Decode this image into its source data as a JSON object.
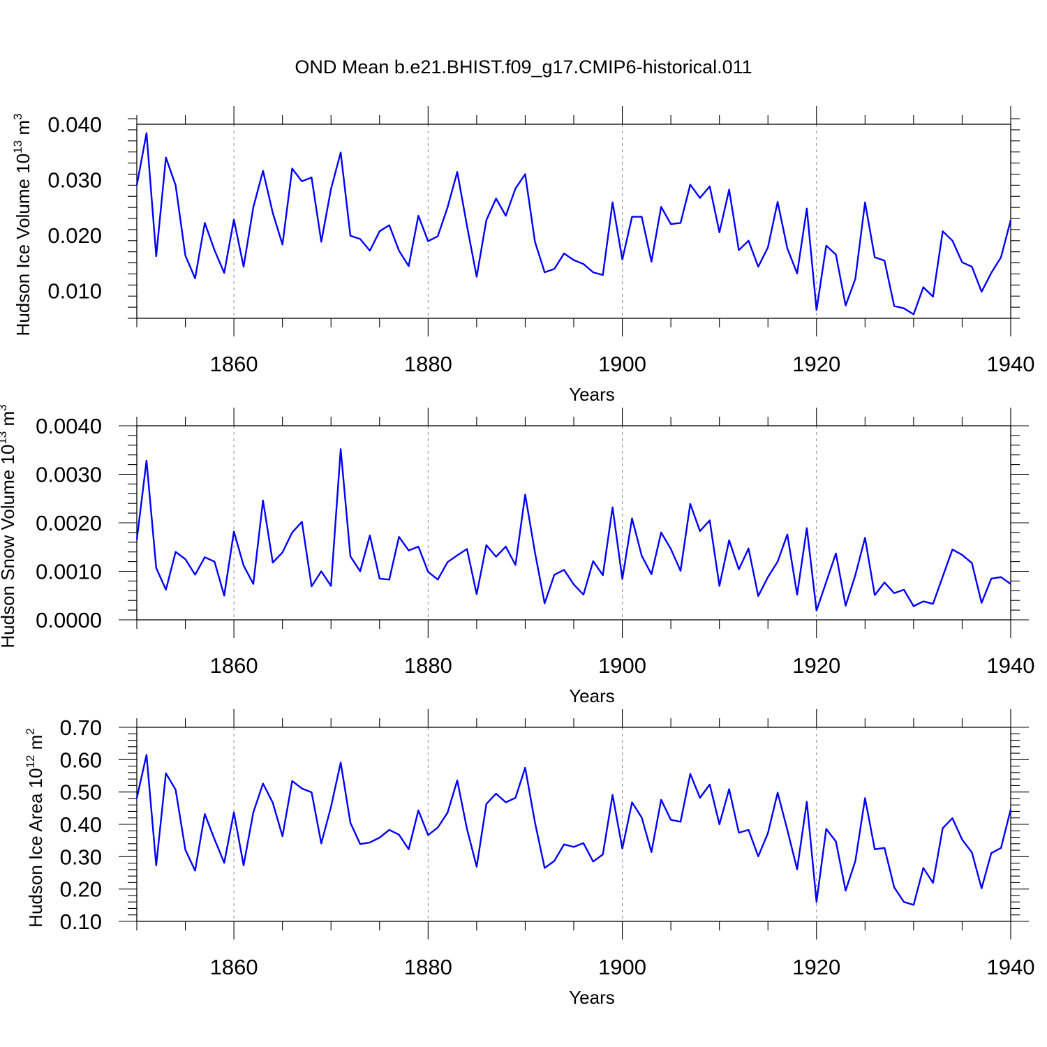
{
  "title": "OND Mean b.e21.BHIST.f09_g17.CMIP6-historical.011",
  "line_color": "#0000ff",
  "chart_data": [
    {
      "type": "line",
      "ylabel": {
        "text": "Hudson Ice Volume 10",
        "sup1": "13",
        "unit": " m",
        "sup2": "3"
      },
      "xlabel": "Years",
      "x": [
        1850,
        1851,
        1852,
        1853,
        1854,
        1855,
        1856,
        1857,
        1858,
        1859,
        1860,
        1861,
        1862,
        1863,
        1864,
        1865,
        1866,
        1867,
        1868,
        1869,
        1870,
        1871,
        1872,
        1873,
        1874,
        1875,
        1876,
        1877,
        1878,
        1879,
        1880,
        1881,
        1882,
        1883,
        1884,
        1885,
        1886,
        1887,
        1888,
        1889,
        1890,
        1891,
        1892,
        1893,
        1894,
        1895,
        1896,
        1897,
        1898,
        1899,
        1900,
        1901,
        1902,
        1903,
        1904,
        1905,
        1906,
        1907,
        1908,
        1909,
        1910,
        1911,
        1912,
        1913,
        1914,
        1915,
        1916,
        1917,
        1918,
        1919,
        1920,
        1921,
        1922,
        1923,
        1924,
        1925,
        1926,
        1927,
        1928,
        1929,
        1930,
        1931,
        1932,
        1933,
        1934,
        1935,
        1936,
        1937,
        1938,
        1939,
        1940
      ],
      "values": [
        0.029,
        0.0384,
        0.0162,
        0.034,
        0.029,
        0.0163,
        0.0122,
        0.0222,
        0.0173,
        0.0132,
        0.0228,
        0.0143,
        0.025,
        0.0316,
        0.024,
        0.0183,
        0.032,
        0.0297,
        0.0304,
        0.0188,
        0.0283,
        0.0349,
        0.0199,
        0.0193,
        0.0172,
        0.0207,
        0.0218,
        0.0172,
        0.0144,
        0.0235,
        0.0189,
        0.0198,
        0.025,
        0.0314,
        0.0217,
        0.0125,
        0.0227,
        0.0266,
        0.0235,
        0.0284,
        0.031,
        0.0188,
        0.0133,
        0.0139,
        0.0167,
        0.0155,
        0.0148,
        0.0133,
        0.0128,
        0.0259,
        0.0156,
        0.0233,
        0.0233,
        0.0152,
        0.0251,
        0.022,
        0.0222,
        0.0291,
        0.0267,
        0.0288,
        0.0205,
        0.0282,
        0.0173,
        0.019,
        0.0143,
        0.0178,
        0.026,
        0.0176,
        0.0131,
        0.0248,
        0.0065,
        0.0181,
        0.0165,
        0.0073,
        0.0121,
        0.0259,
        0.016,
        0.0154,
        0.0072,
        0.0068,
        0.0057,
        0.0106,
        0.0089,
        0.0207,
        0.019,
        0.0151,
        0.0143,
        0.0098,
        0.0132,
        0.016,
        0.0227
      ],
      "xlim": [
        1850,
        1940
      ],
      "ylim": [
        0.005,
        0.04
      ],
      "yticks": [
        0.01,
        0.02,
        0.03,
        0.04
      ],
      "ytick_labels": [
        "0.010",
        "0.020",
        "0.030",
        "0.040"
      ],
      "xticks": [
        1860,
        1880,
        1900,
        1920,
        1940
      ],
      "xtick_labels": [
        "1860",
        "1880",
        "1900",
        "1920",
        "1940"
      ]
    },
    {
      "type": "line",
      "ylabel": {
        "text": "Hudson Snow Volume 10",
        "sup1": "13",
        "unit": " m",
        "sup2": "3"
      },
      "xlabel": "Years",
      "x": [
        1850,
        1851,
        1852,
        1853,
        1854,
        1855,
        1856,
        1857,
        1858,
        1859,
        1860,
        1861,
        1862,
        1863,
        1864,
        1865,
        1866,
        1867,
        1868,
        1869,
        1870,
        1871,
        1872,
        1873,
        1874,
        1875,
        1876,
        1877,
        1878,
        1879,
        1880,
        1881,
        1882,
        1883,
        1884,
        1885,
        1886,
        1887,
        1888,
        1889,
        1890,
        1891,
        1892,
        1893,
        1894,
        1895,
        1896,
        1897,
        1898,
        1899,
        1900,
        1901,
        1902,
        1903,
        1904,
        1905,
        1906,
        1907,
        1908,
        1909,
        1910,
        1911,
        1912,
        1913,
        1914,
        1915,
        1916,
        1917,
        1918,
        1919,
        1920,
        1921,
        1922,
        1923,
        1924,
        1925,
        1926,
        1927,
        1928,
        1929,
        1930,
        1931,
        1932,
        1933,
        1934,
        1935,
        1936,
        1937,
        1938,
        1939,
        1940
      ],
      "values": [
        0.00165,
        0.00328,
        0.00107,
        0.00062,
        0.0014,
        0.00125,
        0.00093,
        0.00129,
        0.0012,
        0.0005,
        0.00182,
        0.00112,
        0.00074,
        0.00246,
        0.00118,
        0.00139,
        0.0018,
        0.00202,
        0.00069,
        0.001,
        0.0007,
        0.00352,
        0.00131,
        0.001,
        0.00174,
        0.00085,
        0.00083,
        0.00171,
        0.00143,
        0.00151,
        0.00099,
        0.00083,
        0.00119,
        0.00133,
        0.00146,
        0.00053,
        0.00154,
        0.0013,
        0.00151,
        0.00113,
        0.00258,
        0.00139,
        0.00034,
        0.00093,
        0.00103,
        0.00073,
        0.00052,
        0.00121,
        0.00092,
        0.00232,
        0.00084,
        0.00209,
        0.00132,
        0.00094,
        0.0018,
        0.00146,
        0.00101,
        0.00239,
        0.00183,
        0.00205,
        0.0007,
        0.00164,
        0.00104,
        0.00147,
        0.00049,
        0.00088,
        0.0012,
        0.00176,
        0.00052,
        0.00189,
        0.00019,
        0.00078,
        0.00137,
        0.00029,
        0.00092,
        0.00169,
        0.00051,
        0.00077,
        0.00055,
        0.00062,
        0.00028,
        0.00038,
        0.00033,
        0.00089,
        0.00145,
        0.00134,
        0.00117,
        0.00035,
        0.00085,
        0.00088,
        0.00074
      ],
      "xlim": [
        1850,
        1940
      ],
      "ylim": [
        0.0,
        0.004
      ],
      "yticks": [
        0.0,
        0.001,
        0.002,
        0.003,
        0.004
      ],
      "ytick_labels": [
        "0.0000",
        "0.0010",
        "0.0020",
        "0.0030",
        "0.0040"
      ],
      "xticks": [
        1860,
        1880,
        1900,
        1920,
        1940
      ],
      "xtick_labels": [
        "1860",
        "1880",
        "1900",
        "1920",
        "1940"
      ]
    },
    {
      "type": "line",
      "ylabel": {
        "text": "Hudson Ice Area 10",
        "sup1": "12",
        "unit": " m",
        "sup2": "2"
      },
      "xlabel": "Years",
      "x": [
        1850,
        1851,
        1852,
        1853,
        1854,
        1855,
        1856,
        1857,
        1858,
        1859,
        1860,
        1861,
        1862,
        1863,
        1864,
        1865,
        1866,
        1867,
        1868,
        1869,
        1870,
        1871,
        1872,
        1873,
        1874,
        1875,
        1876,
        1877,
        1878,
        1879,
        1880,
        1881,
        1882,
        1883,
        1884,
        1885,
        1886,
        1887,
        1888,
        1889,
        1890,
        1891,
        1892,
        1893,
        1894,
        1895,
        1896,
        1897,
        1898,
        1899,
        1900,
        1901,
        1902,
        1903,
        1904,
        1905,
        1906,
        1907,
        1908,
        1909,
        1910,
        1911,
        1912,
        1913,
        1914,
        1915,
        1916,
        1917,
        1918,
        1919,
        1920,
        1921,
        1922,
        1923,
        1924,
        1925,
        1926,
        1927,
        1928,
        1929,
        1930,
        1931,
        1932,
        1933,
        1934,
        1935,
        1936,
        1937,
        1938,
        1939,
        1940
      ],
      "values": [
        0.481,
        0.615,
        0.273,
        0.558,
        0.507,
        0.321,
        0.257,
        0.432,
        0.354,
        0.281,
        0.437,
        0.273,
        0.437,
        0.526,
        0.467,
        0.363,
        0.534,
        0.511,
        0.499,
        0.341,
        0.454,
        0.591,
        0.405,
        0.339,
        0.344,
        0.359,
        0.383,
        0.368,
        0.323,
        0.443,
        0.367,
        0.39,
        0.436,
        0.536,
        0.386,
        0.269,
        0.463,
        0.495,
        0.468,
        0.482,
        0.575,
        0.406,
        0.265,
        0.287,
        0.338,
        0.33,
        0.342,
        0.285,
        0.307,
        0.491,
        0.325,
        0.468,
        0.421,
        0.314,
        0.476,
        0.414,
        0.408,
        0.556,
        0.482,
        0.523,
        0.4,
        0.509,
        0.374,
        0.383,
        0.301,
        0.373,
        0.498,
        0.383,
        0.261,
        0.47,
        0.16,
        0.386,
        0.347,
        0.195,
        0.286,
        0.481,
        0.323,
        0.327,
        0.205,
        0.16,
        0.151,
        0.265,
        0.219,
        0.388,
        0.419,
        0.353,
        0.313,
        0.202,
        0.311,
        0.327,
        0.446
      ],
      "xlim": [
        1850,
        1940
      ],
      "ylim": [
        0.1,
        0.7
      ],
      "yticks": [
        0.1,
        0.2,
        0.3,
        0.4,
        0.5,
        0.6,
        0.7
      ],
      "ytick_labels": [
        "0.10",
        "0.20",
        "0.30",
        "0.40",
        "0.50",
        "0.60",
        "0.70"
      ],
      "xticks": [
        1860,
        1880,
        1900,
        1920,
        1940
      ],
      "xtick_labels": [
        "1860",
        "1880",
        "1900",
        "1920",
        "1940"
      ]
    }
  ]
}
